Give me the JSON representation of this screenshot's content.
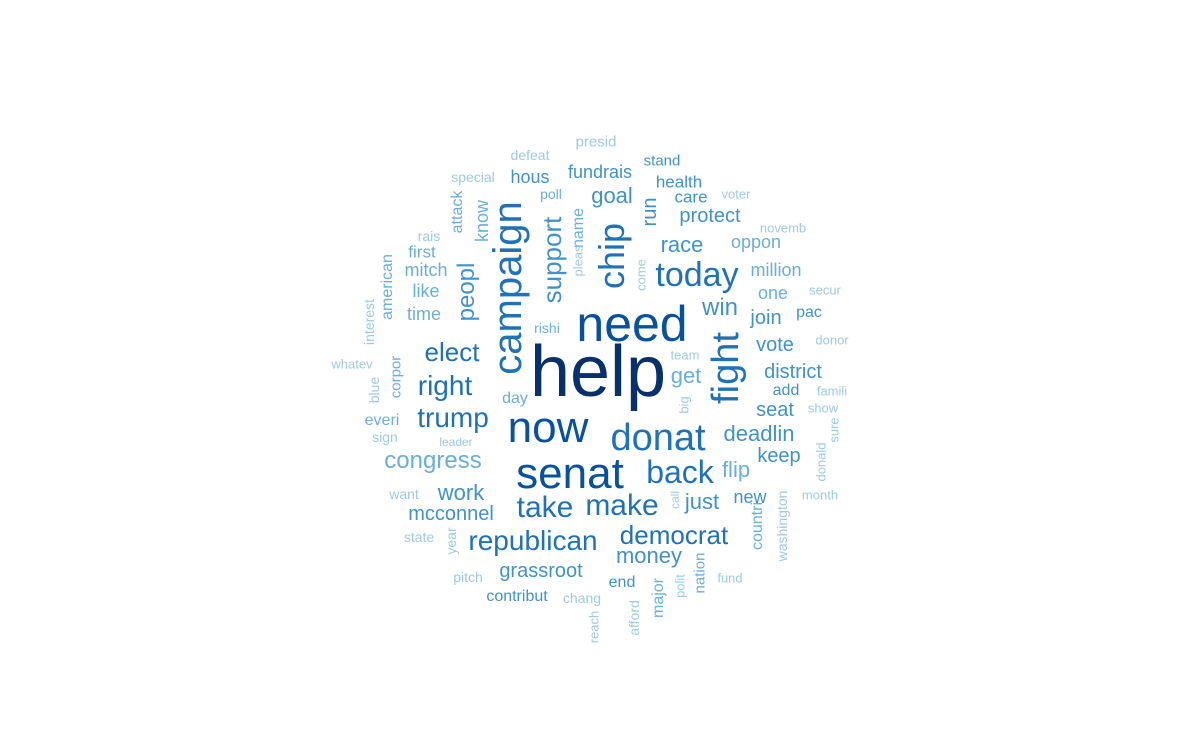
{
  "colors": {
    "level1": "#08306b",
    "level2": "#08519c",
    "level3": "#2171b5",
    "level4": "#4292c6",
    "level5": "#6baed6",
    "level6": "#9ecae1"
  },
  "words": [
    {
      "text": "help",
      "weight": 100,
      "level": 1,
      "rotated": false
    },
    {
      "text": "need",
      "weight": 78,
      "level": 2,
      "rotated": false
    },
    {
      "text": "senat",
      "weight": 70,
      "level": 2,
      "rotated": false
    },
    {
      "text": "now",
      "weight": 70,
      "level": 2,
      "rotated": false
    },
    {
      "text": "campaign",
      "weight": 60,
      "level": 3,
      "rotated": true
    },
    {
      "text": "donat",
      "weight": 58,
      "level": 3,
      "rotated": false
    },
    {
      "text": "fight",
      "weight": 56,
      "level": 3,
      "rotated": true
    },
    {
      "text": "chip",
      "weight": 54,
      "level": 3,
      "rotated": true
    },
    {
      "text": "today",
      "weight": 50,
      "level": 3,
      "rotated": false
    },
    {
      "text": "back",
      "weight": 48,
      "level": 3,
      "rotated": false
    },
    {
      "text": "take",
      "weight": 46,
      "level": 3,
      "rotated": false
    },
    {
      "text": "make",
      "weight": 44,
      "level": 3,
      "rotated": false
    },
    {
      "text": "trump",
      "weight": 42,
      "level": 3,
      "rotated": false
    },
    {
      "text": "republican",
      "weight": 40,
      "level": 3,
      "rotated": false
    },
    {
      "text": "support",
      "weight": 38,
      "level": 4,
      "rotated": true
    },
    {
      "text": "democrat",
      "weight": 38,
      "level": 3,
      "rotated": false
    },
    {
      "text": "right",
      "weight": 36,
      "level": 3,
      "rotated": false
    },
    {
      "text": "elect",
      "weight": 36,
      "level": 3,
      "rotated": false
    },
    {
      "text": "win",
      "weight": 32,
      "level": 4,
      "rotated": false
    },
    {
      "text": "peopl",
      "weight": 32,
      "level": 4,
      "rotated": true
    },
    {
      "text": "congress",
      "weight": 32,
      "level": 5,
      "rotated": false
    },
    {
      "text": "deadlin",
      "weight": 30,
      "level": 4,
      "rotated": false
    },
    {
      "text": "race",
      "weight": 30,
      "level": 4,
      "rotated": false
    },
    {
      "text": "money",
      "weight": 30,
      "level": 4,
      "rotated": false
    },
    {
      "text": "just",
      "weight": 30,
      "level": 4,
      "rotated": false
    },
    {
      "text": "work",
      "weight": 28,
      "level": 4,
      "rotated": false
    },
    {
      "text": "goal",
      "weight": 28,
      "level": 4,
      "rotated": false
    },
    {
      "text": "get",
      "weight": 28,
      "level": 5,
      "rotated": false
    },
    {
      "text": "flip",
      "weight": 28,
      "level": 5,
      "rotated": false
    },
    {
      "text": "district",
      "weight": 28,
      "level": 4,
      "rotated": false
    },
    {
      "text": "grassroot",
      "weight": 26,
      "level": 4,
      "rotated": false
    },
    {
      "text": "mcconnel",
      "weight": 26,
      "level": 4,
      "rotated": false
    },
    {
      "text": "protect",
      "weight": 26,
      "level": 4,
      "rotated": false
    },
    {
      "text": "join",
      "weight": 26,
      "level": 4,
      "rotated": false
    },
    {
      "text": "vote",
      "weight": 26,
      "level": 4,
      "rotated": false
    },
    {
      "text": "keep",
      "weight": 26,
      "level": 4,
      "rotated": false
    },
    {
      "text": "seat",
      "weight": 26,
      "level": 4,
      "rotated": false
    },
    {
      "text": "run",
      "weight": 26,
      "level": 4,
      "rotated": true
    },
    {
      "text": "know",
      "weight": 24,
      "level": 5,
      "rotated": true
    },
    {
      "text": "one",
      "weight": 24,
      "level": 5,
      "rotated": false
    },
    {
      "text": "time",
      "weight": 24,
      "level": 5,
      "rotated": false
    },
    {
      "text": "new",
      "weight": 24,
      "level": 4,
      "rotated": false
    },
    {
      "text": "fundrais",
      "weight": 24,
      "level": 4,
      "rotated": false
    },
    {
      "text": "hous",
      "weight": 24,
      "level": 4,
      "rotated": false
    },
    {
      "text": "name",
      "weight": 22,
      "level": 5,
      "rotated": true
    },
    {
      "text": "million",
      "weight": 22,
      "level": 5,
      "rotated": false
    },
    {
      "text": "oppon",
      "weight": 22,
      "level": 5,
      "rotated": false
    },
    {
      "text": "health",
      "weight": 22,
      "level": 4,
      "rotated": false
    },
    {
      "text": "care",
      "weight": 22,
      "level": 4,
      "rotated": false
    },
    {
      "text": "attack",
      "weight": 22,
      "level": 5,
      "rotated": true
    },
    {
      "text": "like",
      "weight": 22,
      "level": 5,
      "rotated": false
    },
    {
      "text": "mitch",
      "weight": 22,
      "level": 5,
      "rotated": false
    },
    {
      "text": "american",
      "weight": 22,
      "level": 5,
      "rotated": true
    },
    {
      "text": "first",
      "weight": 20,
      "level": 5,
      "rotated": false
    },
    {
      "text": "countri",
      "weight": 20,
      "level": 5,
      "rotated": true
    },
    {
      "text": "washington",
      "weight": 18,
      "level": 6,
      "rotated": true
    },
    {
      "text": "day",
      "weight": 20,
      "level": 5,
      "rotated": false
    },
    {
      "text": "contribut",
      "weight": 20,
      "level": 4,
      "rotated": false
    },
    {
      "text": "end",
      "weight": 20,
      "level": 4,
      "rotated": false
    },
    {
      "text": "major",
      "weight": 20,
      "level": 5,
      "rotated": true
    },
    {
      "text": "nation",
      "weight": 18,
      "level": 5,
      "rotated": true
    },
    {
      "text": "add",
      "weight": 20,
      "level": 4,
      "rotated": false
    },
    {
      "text": "pac",
      "weight": 20,
      "level": 4,
      "rotated": false
    },
    {
      "text": "everi",
      "weight": 20,
      "level": 5,
      "rotated": false
    },
    {
      "text": "corpor",
      "weight": 20,
      "level": 5,
      "rotated": true
    },
    {
      "text": "stand",
      "weight": 18,
      "level": 4,
      "rotated": false
    },
    {
      "text": "poll",
      "weight": 18,
      "level": 5,
      "rotated": false
    },
    {
      "text": "presid",
      "weight": 18,
      "level": 6,
      "rotated": false
    },
    {
      "text": "defeat",
      "weight": 18,
      "level": 6,
      "rotated": false
    },
    {
      "text": "special",
      "weight": 18,
      "level": 6,
      "rotated": false
    },
    {
      "text": "rishi",
      "weight": 18,
      "level": 5,
      "rotated": false
    },
    {
      "text": "interest",
      "weight": 18,
      "level": 6,
      "rotated": true
    },
    {
      "text": "rais",
      "weight": 18,
      "level": 6,
      "rotated": false
    },
    {
      "text": "blue",
      "weight": 18,
      "level": 6,
      "rotated": true
    },
    {
      "text": "sign",
      "weight": 18,
      "level": 6,
      "rotated": false
    },
    {
      "text": "want",
      "weight": 18,
      "level": 6,
      "rotated": false
    },
    {
      "text": "state",
      "weight": 18,
      "level": 6,
      "rotated": false
    },
    {
      "text": "year",
      "weight": 18,
      "level": 6,
      "rotated": true
    },
    {
      "text": "pitch",
      "weight": 18,
      "level": 6,
      "rotated": false
    },
    {
      "text": "chang",
      "weight": 18,
      "level": 6,
      "rotated": false
    },
    {
      "text": "afford",
      "weight": 18,
      "level": 6,
      "rotated": true
    },
    {
      "text": "reach",
      "weight": 16,
      "level": 6,
      "rotated": true
    },
    {
      "text": "polit",
      "weight": 16,
      "level": 6,
      "rotated": true
    },
    {
      "text": "fund",
      "weight": 16,
      "level": 6,
      "rotated": false
    },
    {
      "text": "month",
      "weight": 16,
      "level": 6,
      "rotated": false
    },
    {
      "text": "donald",
      "weight": 16,
      "level": 6,
      "rotated": true
    },
    {
      "text": "sure",
      "weight": 16,
      "level": 6,
      "rotated": true
    },
    {
      "text": "show",
      "weight": 16,
      "level": 6,
      "rotated": false
    },
    {
      "text": "famili",
      "weight": 16,
      "level": 6,
      "rotated": false
    },
    {
      "text": "donor",
      "weight": 16,
      "level": 6,
      "rotated": false
    },
    {
      "text": "secur",
      "weight": 16,
      "level": 6,
      "rotated": false
    },
    {
      "text": "novemb",
      "weight": 16,
      "level": 6,
      "rotated": false
    },
    {
      "text": "voter",
      "weight": 16,
      "level": 6,
      "rotated": false
    },
    {
      "text": "team",
      "weight": 16,
      "level": 6,
      "rotated": false
    },
    {
      "text": "big",
      "weight": 16,
      "level": 6,
      "rotated": true
    },
    {
      "text": "come",
      "weight": 16,
      "level": 6,
      "rotated": true
    },
    {
      "text": "pleas",
      "weight": 16,
      "level": 6,
      "rotated": true
    },
    {
      "text": "call",
      "weight": 16,
      "level": 6,
      "rotated": true
    },
    {
      "text": "leader",
      "weight": 16,
      "level": 6,
      "rotated": false
    },
    {
      "text": "whatev",
      "weight": 16,
      "level": 6,
      "rotated": false
    }
  ]
}
